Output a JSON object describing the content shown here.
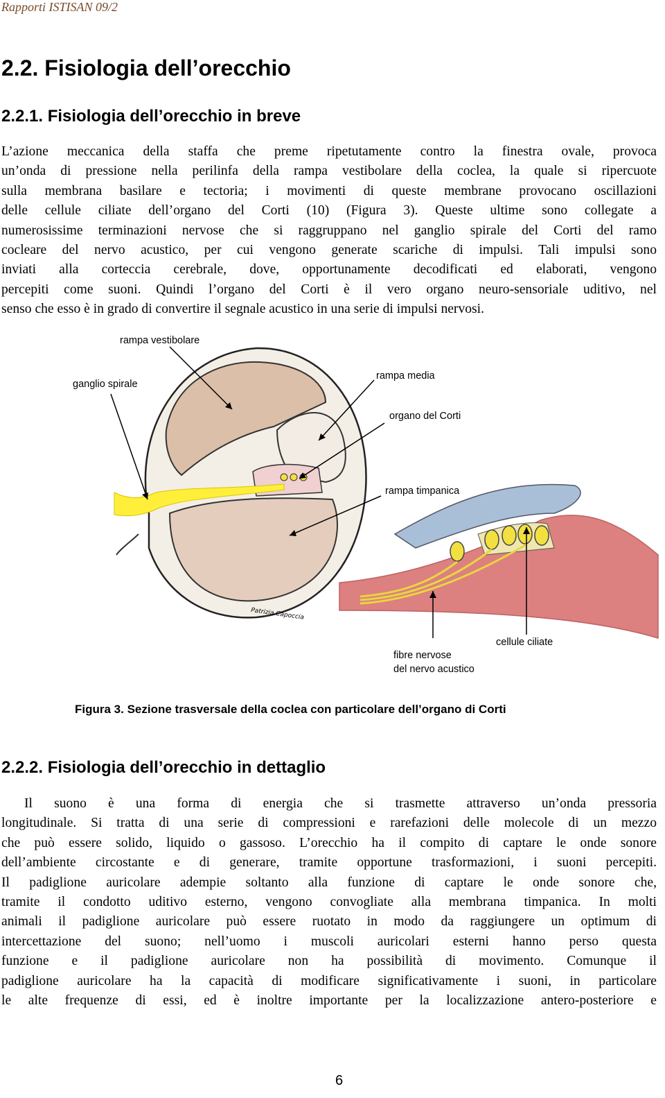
{
  "header": {
    "running_title": "Rapporti ISTISAN 09/2"
  },
  "headings": {
    "section": "2.2. Fisiologia dell’orecchio",
    "sub_1": "2.2.1. Fisiologia dell’orecchio in breve",
    "sub_2": "2.2.2. Fisiologia dell’orecchio in dettaglio"
  },
  "paragraphs": [
    {
      "lines": [
        "L’azione meccanica della staffa che preme ripetutamente contro la finestra ovale, provoca",
        "un’onda di pressione nella perilinfa della rampa vestibolare della coclea, la quale si ripercuote",
        "sulla membrana basilare e tectoria; i movimenti di queste membrane provocano oscillazioni",
        "delle cellule ciliate dell’organo del Corti (10) (Figura 3). Queste ultime sono collegate a",
        "numerosissime terminazioni nervose che si raggruppano nel ganglio spirale del Corti del ramo",
        "cocleare del nervo acustico, per cui vengono generate scariche di impulsi. Tali impulsi sono",
        "inviati alla corteccia cerebrale, dove, opportunamente decodificati ed elaborati, vengono",
        "percepiti come suoni. Quindi l’organo del Corti è il vero organo neuro-sensoriale uditivo, nel",
        "senso che esso è in grado di convertire il segnale acustico in una serie di impulsi nervosi."
      ]
    },
    {
      "lines": [
        "Il suono è una forma di energia che si trasmette attraverso un’onda pressoria",
        "longitudinale. Si tratta di una serie di compressioni e rarefazioni delle molecole di un mezzo",
        "che può essere solido, liquido o gassoso. L’orecchio ha il compito di captare le onde sonore",
        "dell’ambiente circostante e di generare, tramite opportune trasformazioni, i suoni percepiti.",
        "Il padiglione auricolare adempie soltanto alla funzione di captare le onde sonore che,",
        "tramite il condotto uditivo esterno, vengono convogliate alla membrana timpanica. In molti",
        "animali il padiglione auricolare può essere ruotato in modo da raggiungere un optimum di",
        "intercettazione del suono; nell’uomo i muscoli auricolari esterni hanno perso questa",
        "funzione e il padiglione auricolare non ha possibilità di movimento. Comunque il",
        "padiglione auricolare ha la capacità di modificare significativamente i suoni, in particolare",
        "le alte frequenze di essi, ed è inoltre importante per la localizzazione antero-posteriore e"
      ]
    }
  ],
  "figure": {
    "labels": {
      "rampa_vestibolare": "rampa vestibolare",
      "ganglio_spirale": "ganglio spirale",
      "rampa_media": "rampa media",
      "organo_del_corti": "organo del Corti",
      "rampa_timpanica": "rampa timpanica",
      "fibre_nervose_1": "fibre nervose",
      "fibre_nervose_2": "del nervo acustico",
      "cellule_ciliate": "cellule ciliate"
    },
    "signature": "Patrizia Capoccia",
    "caption": "Figura 3. Sezione trasversale della coclea con particolare dell’organo di Corti"
  },
  "footer": {
    "page_number": "6"
  }
}
